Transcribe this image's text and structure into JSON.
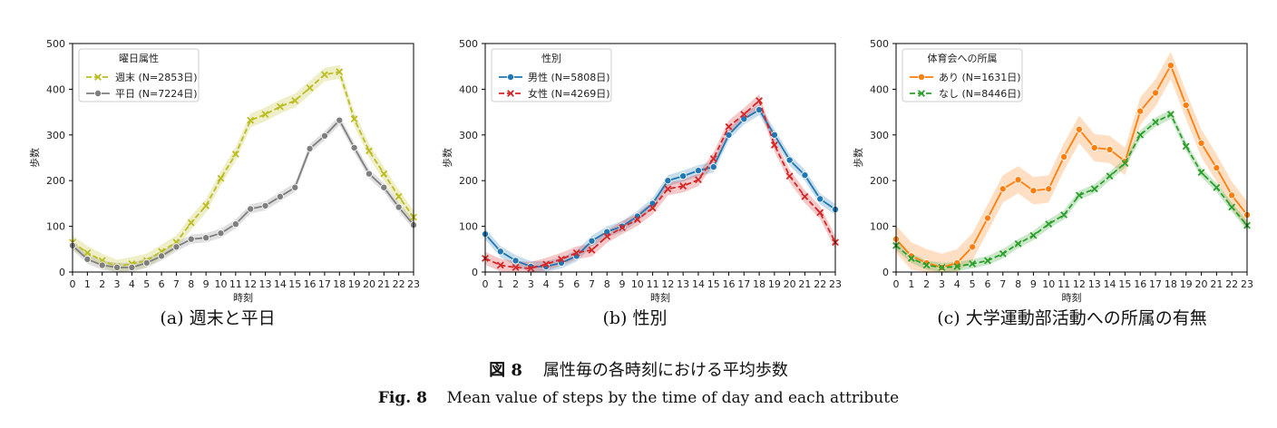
{
  "chart_data": [
    {
      "type": "line",
      "panel_caption": "(a) 週末と平日",
      "xlabel": "時刻",
      "ylabel": "歩数",
      "x": [
        0,
        1,
        2,
        3,
        4,
        5,
        6,
        7,
        8,
        9,
        10,
        11,
        12,
        13,
        14,
        15,
        16,
        17,
        18,
        19,
        20,
        21,
        22,
        23
      ],
      "xlim": [
        0,
        23
      ],
      "ylim": [
        0,
        500
      ],
      "yticks": [
        0,
        100,
        200,
        300,
        400,
        500
      ],
      "grid": false,
      "legend": {
        "title": "曜日属性",
        "placement": "top-left"
      },
      "series": [
        {
          "name": "週末 (N=2853日)",
          "color": "#bcbd22",
          "dashed": true,
          "marker": "x",
          "values": [
            65,
            42,
            25,
            12,
            18,
            25,
            45,
            65,
            108,
            145,
            205,
            258,
            332,
            345,
            362,
            375,
            403,
            432,
            438,
            335,
            265,
            215,
            165,
            120
          ],
          "band": 15
        },
        {
          "name": "平日 (N=7224日)",
          "color": "#7f7f7f",
          "dashed": false,
          "marker": "o",
          "values": [
            58,
            28,
            15,
            10,
            10,
            20,
            35,
            55,
            72,
            75,
            85,
            105,
            138,
            145,
            165,
            185,
            270,
            298,
            332,
            272,
            215,
            185,
            142,
            103
          ],
          "band": 10
        }
      ]
    },
    {
      "type": "line",
      "panel_caption": "(b) 性別",
      "xlabel": "時刻",
      "ylabel": "歩数",
      "x": [
        0,
        1,
        2,
        3,
        4,
        5,
        6,
        7,
        8,
        9,
        10,
        11,
        12,
        13,
        14,
        15,
        16,
        17,
        18,
        19,
        20,
        21,
        22,
        23
      ],
      "xlim": [
        0,
        23
      ],
      "ylim": [
        0,
        500
      ],
      "yticks": [
        0,
        100,
        200,
        300,
        400,
        500
      ],
      "grid": false,
      "legend": {
        "title": "性別",
        "placement": "top-left"
      },
      "series": [
        {
          "name": "男性 (N=5808日)",
          "color": "#1f77b4",
          "dashed": false,
          "marker": "o",
          "values": [
            83,
            45,
            25,
            12,
            12,
            20,
            35,
            68,
            88,
            100,
            122,
            150,
            200,
            210,
            222,
            230,
            300,
            335,
            355,
            300,
            245,
            212,
            160,
            137
          ],
          "band": 12
        },
        {
          "name": "女性 (N=4269日)",
          "color": "#d62728",
          "dashed": true,
          "marker": "x",
          "values": [
            30,
            15,
            10,
            8,
            17,
            28,
            42,
            48,
            78,
            97,
            115,
            140,
            182,
            188,
            202,
            248,
            318,
            345,
            375,
            278,
            210,
            165,
            130,
            65
          ],
          "band": 14
        }
      ]
    },
    {
      "type": "line",
      "panel_caption": "(c) 大学運動部活動への所属の有無",
      "xlabel": "時刻",
      "ylabel": "歩数",
      "x": [
        0,
        1,
        2,
        3,
        4,
        5,
        6,
        7,
        8,
        9,
        10,
        11,
        12,
        13,
        14,
        15,
        16,
        17,
        18,
        19,
        20,
        21,
        22,
        23
      ],
      "xlim": [
        0,
        23
      ],
      "ylim": [
        0,
        500
      ],
      "yticks": [
        0,
        100,
        200,
        300,
        400,
        500
      ],
      "grid": false,
      "legend": {
        "title": "体育会への所属",
        "placement": "top-left"
      },
      "series": [
        {
          "name": "あり (N=1631日)",
          "color": "#ff7f0e",
          "dashed": false,
          "marker": "o",
          "values": [
            72,
            35,
            20,
            10,
            20,
            55,
            118,
            182,
            202,
            178,
            182,
            252,
            312,
            272,
            268,
            242,
            352,
            392,
            452,
            365,
            282,
            228,
            168,
            125
          ],
          "band": 30
        },
        {
          "name": "なし (N=8446日)",
          "color": "#2ca02c",
          "dashed": true,
          "marker": "x",
          "values": [
            58,
            30,
            15,
            10,
            12,
            18,
            25,
            40,
            62,
            80,
            105,
            125,
            168,
            182,
            210,
            238,
            300,
            328,
            345,
            275,
            218,
            185,
            142,
            102
          ],
          "band": 10
        }
      ]
    }
  ],
  "figure_caption": {
    "jp_label": "図 8",
    "jp_text": "属性毎の各時刻における平均歩数",
    "en_label": "Fig. 8",
    "en_text": "Mean value of steps by the time of day and each attribute"
  }
}
